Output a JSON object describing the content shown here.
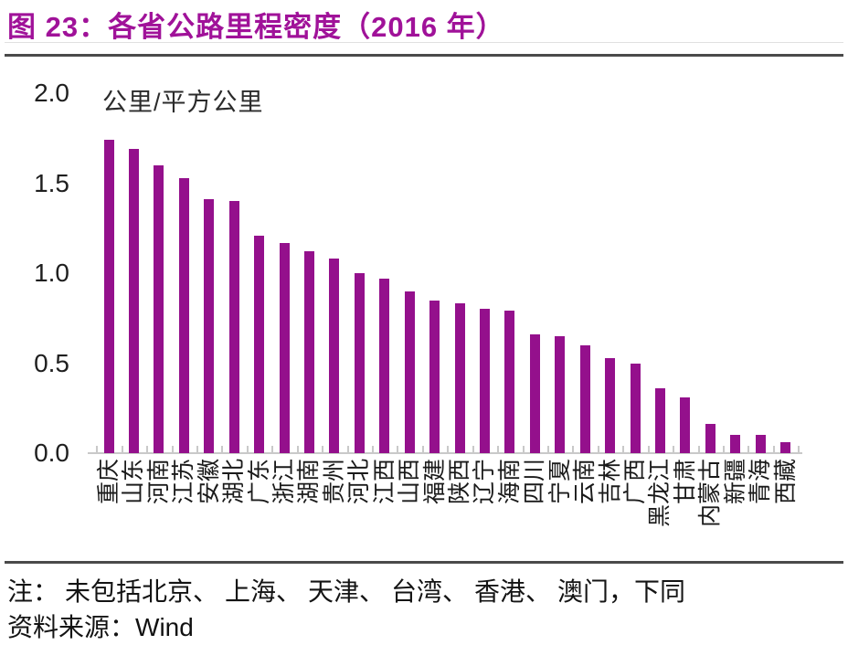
{
  "title": "图 23：各省公路里程密度（2016 年）",
  "colors": {
    "title": "#A01299",
    "bar": "#94108C",
    "rule": "#4A4A4A",
    "axis_line": "#C9C9C9",
    "text": "#1F1F1F"
  },
  "chart_data": {
    "type": "bar",
    "title": "图 23：各省公路里程密度（2016 年）",
    "unit_label": "公里/平方公里",
    "categories": [
      "重庆",
      "山东",
      "河南",
      "江苏",
      "安徽",
      "湖北",
      "广东",
      "浙江",
      "湖南",
      "贵州",
      "河北",
      "江西",
      "山西",
      "福建",
      "陕西",
      "辽宁",
      "海南",
      "四川",
      "宁夏",
      "云南",
      "吉林",
      "广西",
      "黑龙江",
      "甘肃",
      "内蒙古",
      "新疆",
      "青海",
      "西藏"
    ],
    "values": [
      1.74,
      1.69,
      1.6,
      1.53,
      1.41,
      1.4,
      1.21,
      1.17,
      1.12,
      1.08,
      1.0,
      0.97,
      0.9,
      0.85,
      0.83,
      0.8,
      0.79,
      0.66,
      0.65,
      0.6,
      0.53,
      0.5,
      0.36,
      0.31,
      0.16,
      0.1,
      0.1,
      0.06
    ],
    "ylim": [
      0.0,
      2.0
    ],
    "ytick_labels": [
      "2.0",
      "1.5",
      "1.0",
      "0.5",
      "0.0"
    ],
    "grid": false,
    "legend": null,
    "bar_color": "#94108C"
  },
  "footer": {
    "note": "注： 未包括北京、 上海、 天津、 台湾、 香港、 澳门，下同",
    "source_label": "资料来源：",
    "source_value": "Wind"
  }
}
